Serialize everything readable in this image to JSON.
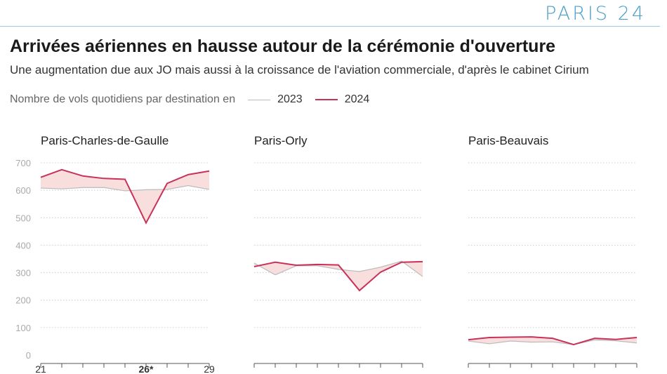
{
  "logo": "PARIS 24",
  "title": "Arrivées aériennes en hausse autour de la cérémonie d'ouverture",
  "subtitle": "Une augmentation due aux JO mais aussi à la croissance de l'aviation commerciale, d'après le cabinet Cirium",
  "legend": {
    "label": "Nombre de vols quotidiens par destination en",
    "items": [
      "2023",
      "2024"
    ]
  },
  "colors": {
    "2023": "#bbbbbb",
    "2024": "#c8325a",
    "fill": "#f9dede"
  },
  "chart_data": [
    {
      "type": "line",
      "title": "Paris-Charles-de-Gaulle",
      "x": [
        21,
        22,
        23,
        24,
        25,
        26,
        27,
        28,
        29
      ],
      "xtick_labels": [
        "21",
        "26*",
        "29"
      ],
      "ylim": [
        0,
        700
      ],
      "yticks": [
        0,
        100,
        200,
        300,
        400,
        500,
        600,
        700
      ],
      "series": [
        {
          "name": "2023",
          "values": [
            608,
            605,
            610,
            610,
            598,
            602,
            603,
            617,
            603
          ]
        },
        {
          "name": "2024",
          "values": [
            647,
            675,
            652,
            643,
            640,
            481,
            625,
            657,
            670
          ]
        }
      ]
    },
    {
      "type": "line",
      "title": "Paris-Orly",
      "x": [
        21,
        22,
        23,
        24,
        25,
        26,
        27,
        28,
        29
      ],
      "ylim": [
        0,
        700
      ],
      "series": [
        {
          "name": "2023",
          "values": [
            335,
            292,
            325,
            325,
            312,
            304,
            320,
            342,
            286
          ]
        },
        {
          "name": "2024",
          "values": [
            322,
            338,
            327,
            330,
            328,
            235,
            302,
            338,
            340
          ]
        }
      ]
    },
    {
      "type": "line",
      "title": "Paris-Beauvais",
      "x": [
        21,
        22,
        23,
        24,
        25,
        26,
        27,
        28,
        29
      ],
      "ylim": [
        0,
        700
      ],
      "series": [
        {
          "name": "2023",
          "values": [
            51,
            41,
            51,
            47,
            48,
            38,
            55,
            52,
            44
          ]
        },
        {
          "name": "2024",
          "values": [
            56,
            64,
            65,
            66,
            61,
            38,
            61,
            57,
            64
          ]
        }
      ]
    }
  ]
}
